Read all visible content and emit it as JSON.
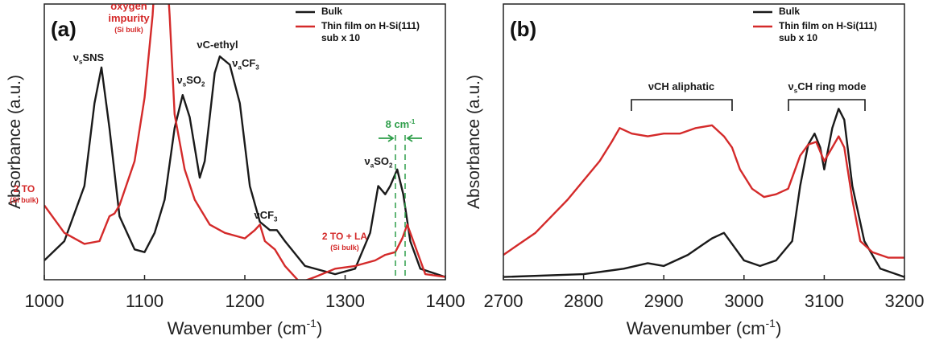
{
  "chart_data": [
    {
      "type": "line",
      "panel_label": "(a)",
      "xlabel": [
        "Wavenumber (cm",
        "-1",
        ")"
      ],
      "ylabel": "Absorbance (a.u.)",
      "xlim": [
        1000,
        1400
      ],
      "xticks": [
        1000,
        1100,
        1200,
        1300,
        1400
      ],
      "ylim": [
        0,
        100
      ],
      "series": [
        {
          "name": "Bulk",
          "color": "#1a1a1a",
          "x": [
            1000,
            1020,
            1040,
            1050,
            1057,
            1065,
            1075,
            1090,
            1100,
            1110,
            1120,
            1130,
            1138,
            1145,
            1155,
            1160,
            1170,
            1175,
            1185,
            1195,
            1205,
            1215,
            1225,
            1232,
            1240,
            1260,
            1290,
            1310,
            1325,
            1333,
            1340,
            1345,
            1352,
            1358,
            1365,
            1375,
            1400
          ],
          "values": [
            7,
            14,
            34,
            64,
            77,
            55,
            23,
            11,
            10,
            17,
            29,
            55,
            67,
            59,
            37,
            43,
            75,
            81,
            78,
            64,
            34,
            21,
            18,
            18,
            14,
            5,
            2,
            4,
            17,
            34,
            31,
            34,
            40,
            31,
            14,
            4,
            1
          ]
        },
        {
          "name": "Thin film on H-Si(111)\nsub x 10",
          "color": "#d42a2a",
          "x": [
            1000,
            1020,
            1040,
            1055,
            1065,
            1070,
            1075,
            1090,
            1100,
            1108,
            1113,
            1120,
            1125,
            1130,
            1140,
            1150,
            1165,
            1180,
            1200,
            1210,
            1215,
            1220,
            1230,
            1240,
            1255,
            1270,
            1290,
            1310,
            1330,
            1340,
            1350,
            1357,
            1362,
            1368,
            1380,
            1400
          ],
          "values": [
            27,
            17,
            13,
            14,
            23,
            24,
            27,
            43,
            66,
            96,
            125,
            125,
            96,
            60,
            40,
            29,
            20,
            17,
            15,
            18,
            20,
            14,
            11,
            5,
            -1,
            1,
            4,
            5,
            7,
            9,
            10,
            15,
            20,
            14,
            2,
            1
          ]
        }
      ],
      "annotations": [
        {
          "text": [
            "oxygen"
          ],
          "color": "#d42a2a"
        },
        {
          "text": [
            "impurity"
          ],
          "color": "#d42a2a"
        },
        {
          "text": [
            "(Si bulk)"
          ],
          "color": "#d42a2a"
        },
        {
          "text": [
            "ν",
            "s",
            "SNS"
          ],
          "color": "#1a1a1a"
        },
        {
          "text": [
            "ν",
            "s",
            "SO",
            "2"
          ],
          "color": "#1a1a1a"
        },
        {
          "text": [
            "νC-ethyl"
          ],
          "color": "#1a1a1a"
        },
        {
          "text": [
            "ν",
            "a",
            "CF",
            "3"
          ],
          "color": "#1a1a1a"
        },
        {
          "text": [
            "νCF",
            "3"
          ],
          "color": "#1a1a1a"
        },
        {
          "text": [
            "2 TO"
          ],
          "color": "#d42a2a"
        },
        {
          "text": [
            "(Si bulk)"
          ],
          "color": "#d42a2a"
        },
        {
          "text": [
            "2 TO + LA"
          ],
          "color": "#d42a2a"
        },
        {
          "text": [
            "(Si bulk)"
          ],
          "color": "#d42a2a"
        },
        {
          "text": [
            "ν",
            "a",
            "SO",
            "2"
          ],
          "color": "#1a1a1a"
        },
        {
          "text": [
            "8 cm",
            "-1"
          ],
          "color": "#2e9e4a"
        }
      ]
    },
    {
      "type": "line",
      "panel_label": "(b)",
      "xlabel": [
        "Wavenumber (cm",
        "-1",
        ")"
      ],
      "ylabel": "Absorbance (a.u.)",
      "xlim": [
        2700,
        3200
      ],
      "xticks": [
        2700,
        2800,
        2900,
        3000,
        3100,
        3200
      ],
      "ylim": [
        0,
        100
      ],
      "series": [
        {
          "name": "Bulk",
          "color": "#1a1a1a",
          "x": [
            2700,
            2800,
            2850,
            2880,
            2900,
            2930,
            2950,
            2960,
            2975,
            2985,
            3000,
            3020,
            3040,
            3060,
            3070,
            3080,
            3088,
            3095,
            3100,
            3110,
            3118,
            3125,
            3135,
            3150,
            3170,
            3200
          ],
          "values": [
            1,
            2,
            4,
            6,
            5,
            9,
            13,
            15,
            17,
            13,
            7,
            5,
            7,
            14,
            34,
            49,
            53,
            48,
            40,
            55,
            62,
            58,
            34,
            14,
            4,
            1
          ]
        },
        {
          "name": "Thin film on H-Si(111)\nsub x 10",
          "color": "#d42a2a",
          "x": [
            2700,
            2720,
            2740,
            2760,
            2780,
            2800,
            2820,
            2835,
            2845,
            2860,
            2880,
            2900,
            2920,
            2940,
            2960,
            2975,
            2985,
            2995,
            3010,
            3025,
            3040,
            3055,
            3070,
            3080,
            3090,
            3100,
            3110,
            3118,
            3125,
            3135,
            3145,
            3160,
            3180,
            3200
          ],
          "values": [
            9,
            13,
            17,
            23,
            29,
            36,
            43,
            50,
            55,
            53,
            52,
            53,
            53,
            55,
            56,
            52,
            48,
            40,
            33,
            30,
            31,
            33,
            45,
            49,
            50,
            43,
            48,
            52,
            48,
            29,
            14,
            10,
            8,
            8
          ]
        }
      ],
      "annotations": [
        {
          "text": [
            "νCH aliphatic"
          ],
          "color": "#1a1a1a"
        },
        {
          "text": [
            "ν",
            "s",
            "CH ring mode"
          ],
          "color": "#1a1a1a"
        }
      ]
    }
  ]
}
